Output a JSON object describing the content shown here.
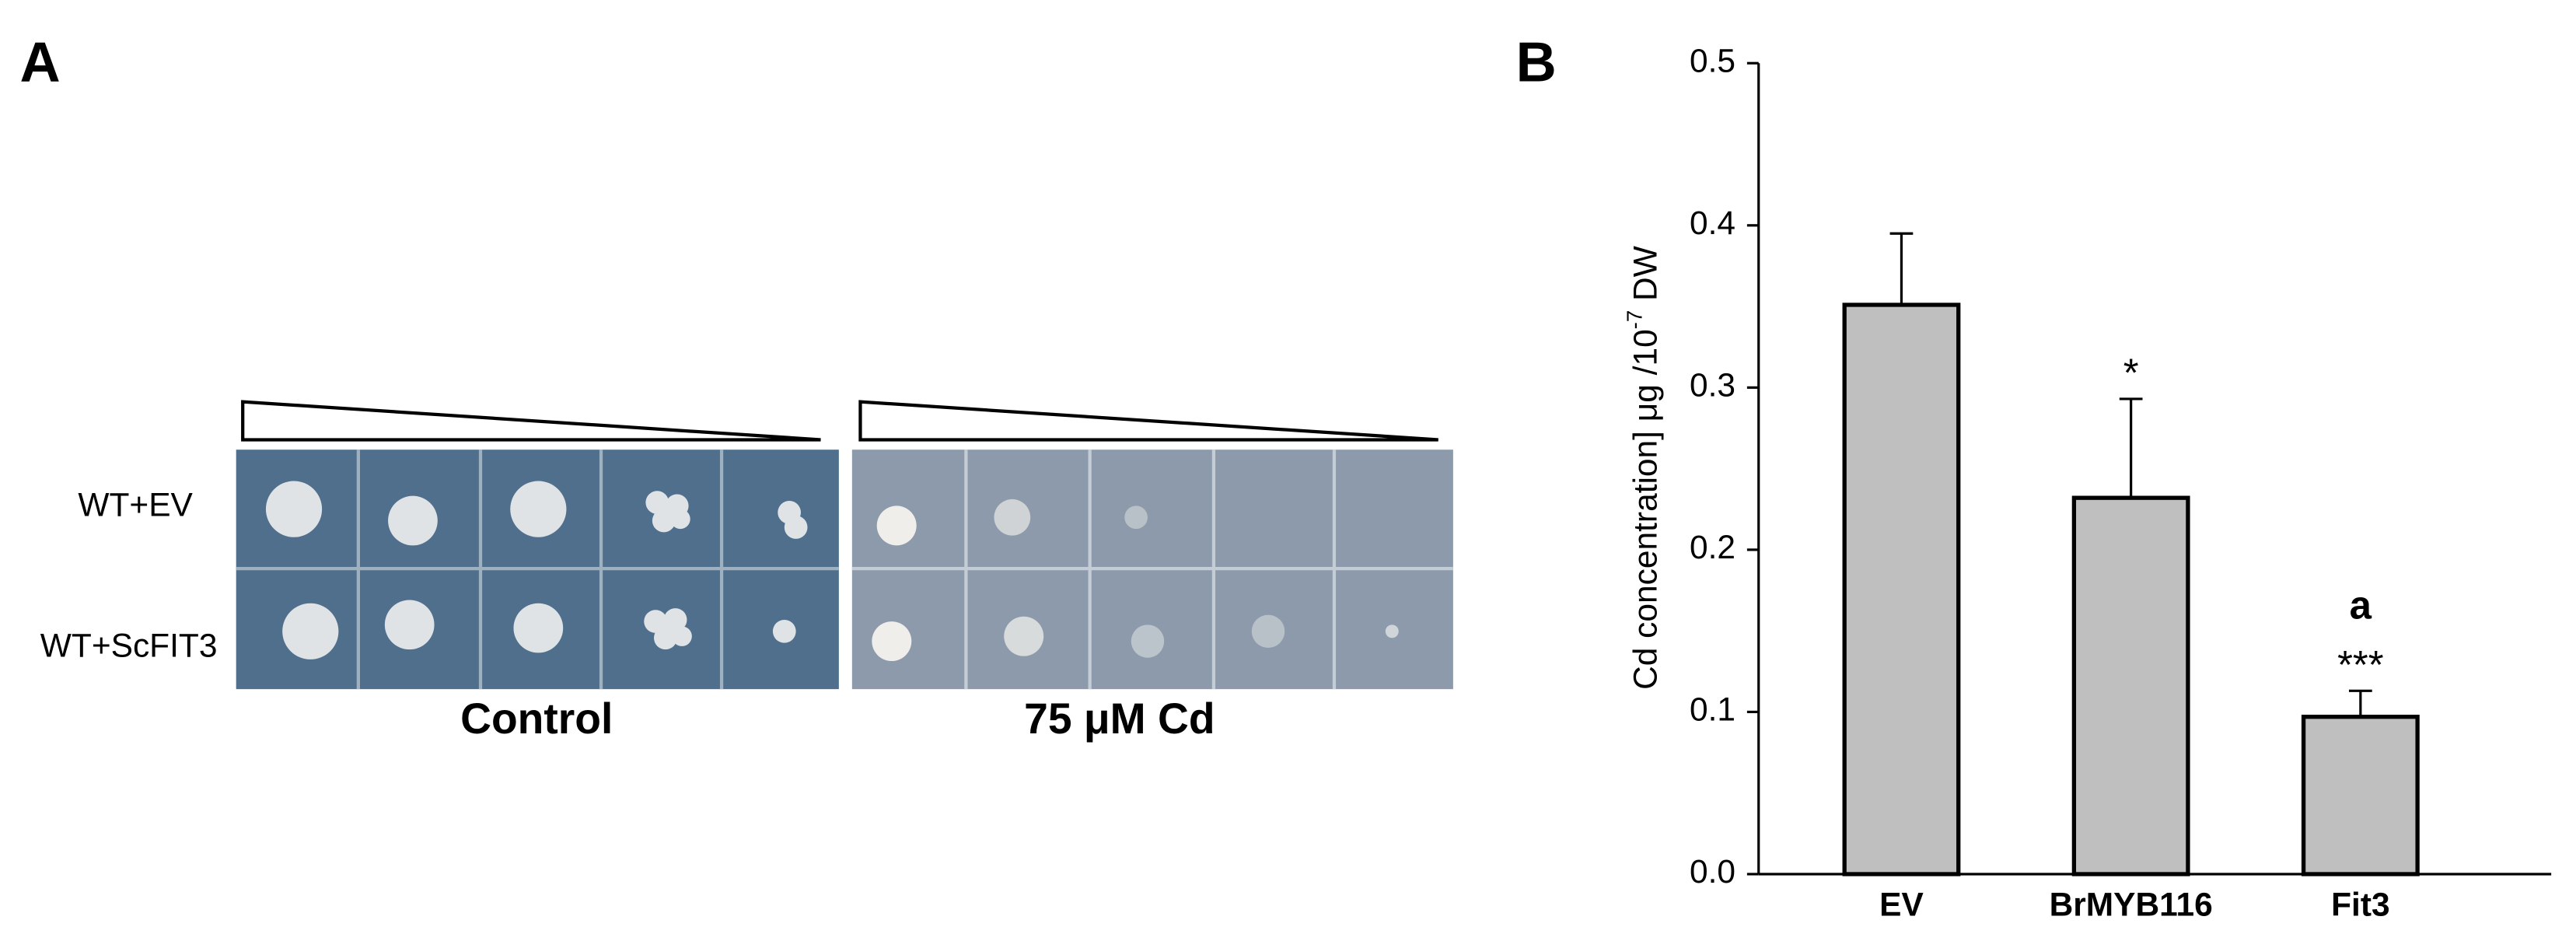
{
  "panel_a": {
    "label": "A",
    "row_labels": [
      "WT+EV",
      "WT+ScFIT3"
    ],
    "plate_labels": [
      "Control",
      "75 μM Cd"
    ]
  },
  "chart_data": {
    "type": "bar",
    "panel_label": "B",
    "y_label": [
      "Cd concentration] μg /10",
      "-7",
      " DW"
    ],
    "categories": [
      "EV",
      "BrMYB116",
      "Fit3"
    ],
    "values": [
      0.351,
      0.232,
      0.097
    ],
    "errors": [
      0.044,
      0.061,
      0.016
    ],
    "color": "#bfbfbf",
    "annotations": [
      {
        "category": "BrMYB116",
        "text": "*"
      },
      {
        "category": "Fit3",
        "text": "***"
      },
      {
        "category": "Fit3",
        "text": "a"
      }
    ],
    "ylim": [
      0,
      0.5
    ],
    "yticks": [
      {
        "value": 0,
        "label": "0.0"
      },
      0.1,
      0.2,
      0.3,
      0.4,
      0.5
    ]
  }
}
